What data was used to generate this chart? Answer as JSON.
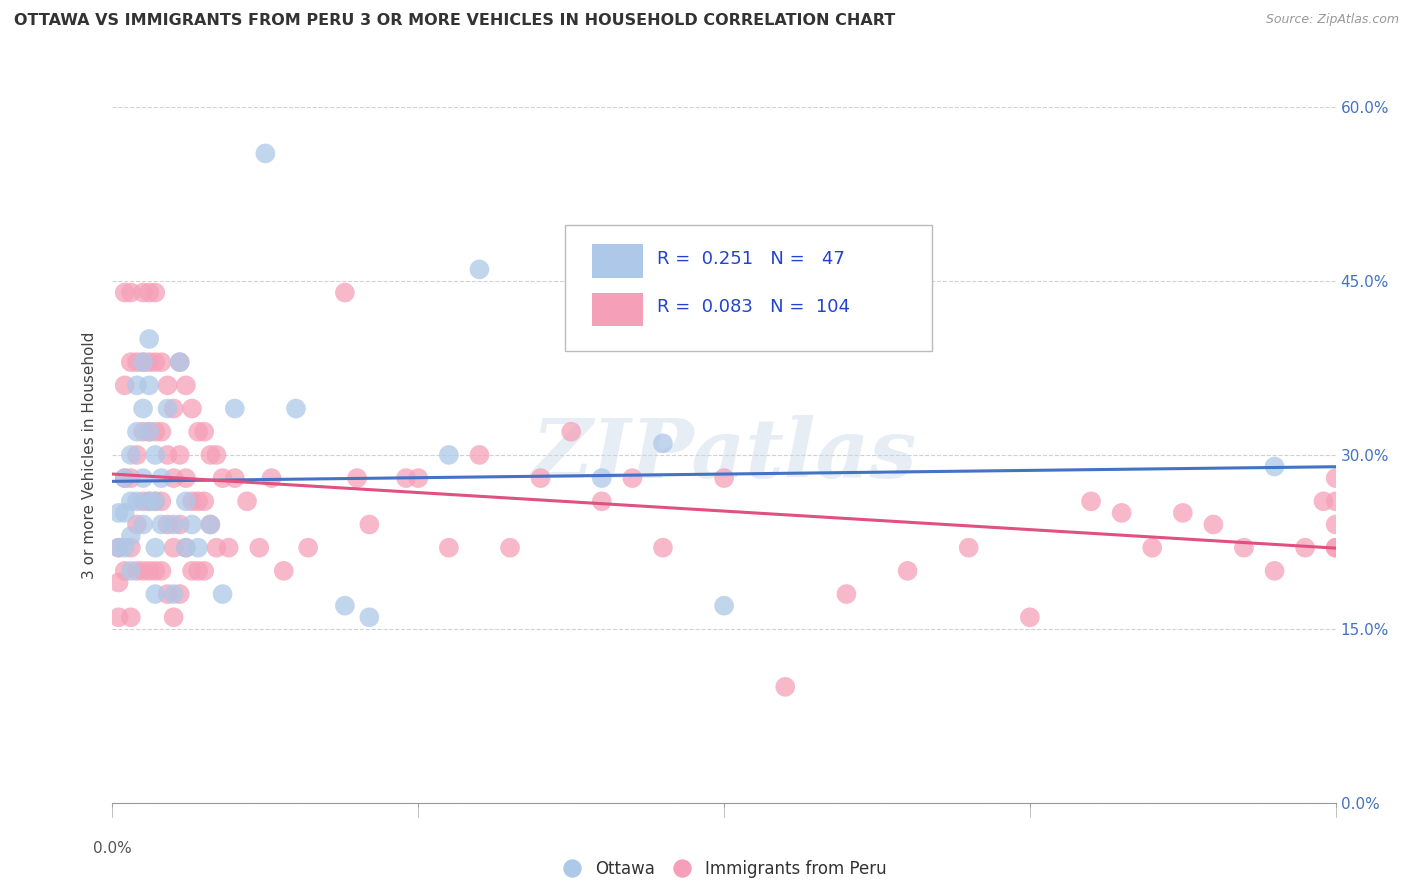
{
  "title": "OTTAWA VS IMMIGRANTS FROM PERU 3 OR MORE VEHICLES IN HOUSEHOLD CORRELATION CHART",
  "source": "Source: ZipAtlas.com",
  "ylabel": "3 or more Vehicles in Household",
  "xlim": [
    0.0,
    0.2
  ],
  "ylim": [
    0.0,
    0.6
  ],
  "ottawa_R": "0.251",
  "ottawa_N": "47",
  "peru_R": "0.083",
  "peru_N": "104",
  "ottawa_color": "#adc8e8",
  "peru_color": "#f5a0b8",
  "ottawa_line_color": "#4472c4",
  "peru_line_color": "#e05080",
  "background_color": "#ffffff",
  "grid_color": "#cccccc",
  "watermark": "ZIPatlas",
  "ottawa_x": [
    0.001,
    0.001,
    0.002,
    0.002,
    0.002,
    0.003,
    0.003,
    0.003,
    0.003,
    0.004,
    0.004,
    0.004,
    0.005,
    0.005,
    0.005,
    0.005,
    0.006,
    0.006,
    0.006,
    0.006,
    0.007,
    0.007,
    0.007,
    0.007,
    0.008,
    0.008,
    0.009,
    0.01,
    0.01,
    0.011,
    0.012,
    0.012,
    0.013,
    0.014,
    0.016,
    0.018,
    0.02,
    0.025,
    0.03,
    0.038,
    0.042,
    0.055,
    0.06,
    0.08,
    0.09,
    0.1,
    0.19
  ],
  "ottawa_y": [
    0.25,
    0.22,
    0.28,
    0.25,
    0.22,
    0.3,
    0.26,
    0.23,
    0.2,
    0.36,
    0.32,
    0.26,
    0.38,
    0.34,
    0.28,
    0.24,
    0.4,
    0.36,
    0.32,
    0.26,
    0.3,
    0.26,
    0.22,
    0.18,
    0.28,
    0.24,
    0.34,
    0.24,
    0.18,
    0.38,
    0.26,
    0.22,
    0.24,
    0.22,
    0.24,
    0.18,
    0.34,
    0.56,
    0.34,
    0.17,
    0.16,
    0.3,
    0.46,
    0.28,
    0.31,
    0.17,
    0.29
  ],
  "peru_x": [
    0.001,
    0.001,
    0.001,
    0.002,
    0.002,
    0.002,
    0.002,
    0.003,
    0.003,
    0.003,
    0.003,
    0.003,
    0.004,
    0.004,
    0.004,
    0.004,
    0.005,
    0.005,
    0.005,
    0.005,
    0.005,
    0.006,
    0.006,
    0.006,
    0.006,
    0.006,
    0.007,
    0.007,
    0.007,
    0.007,
    0.007,
    0.008,
    0.008,
    0.008,
    0.008,
    0.009,
    0.009,
    0.009,
    0.009,
    0.01,
    0.01,
    0.01,
    0.01,
    0.011,
    0.011,
    0.011,
    0.011,
    0.012,
    0.012,
    0.012,
    0.013,
    0.013,
    0.013,
    0.014,
    0.014,
    0.014,
    0.015,
    0.015,
    0.015,
    0.016,
    0.016,
    0.017,
    0.017,
    0.018,
    0.019,
    0.02,
    0.022,
    0.024,
    0.026,
    0.028,
    0.032,
    0.038,
    0.04,
    0.042,
    0.048,
    0.05,
    0.055,
    0.06,
    0.065,
    0.07,
    0.075,
    0.08,
    0.085,
    0.09,
    0.1,
    0.11,
    0.12,
    0.13,
    0.14,
    0.15,
    0.16,
    0.165,
    0.17,
    0.175,
    0.18,
    0.185,
    0.19,
    0.195,
    0.198,
    0.2,
    0.2,
    0.2,
    0.2,
    0.2
  ],
  "peru_y": [
    0.22,
    0.19,
    0.16,
    0.44,
    0.36,
    0.28,
    0.2,
    0.44,
    0.38,
    0.28,
    0.22,
    0.16,
    0.38,
    0.3,
    0.24,
    0.2,
    0.44,
    0.38,
    0.32,
    0.26,
    0.2,
    0.44,
    0.38,
    0.32,
    0.26,
    0.2,
    0.44,
    0.38,
    0.32,
    0.26,
    0.2,
    0.38,
    0.32,
    0.26,
    0.2,
    0.36,
    0.3,
    0.24,
    0.18,
    0.34,
    0.28,
    0.22,
    0.16,
    0.38,
    0.3,
    0.24,
    0.18,
    0.36,
    0.28,
    0.22,
    0.34,
    0.26,
    0.2,
    0.32,
    0.26,
    0.2,
    0.32,
    0.26,
    0.2,
    0.3,
    0.24,
    0.3,
    0.22,
    0.28,
    0.22,
    0.28,
    0.26,
    0.22,
    0.28,
    0.2,
    0.22,
    0.44,
    0.28,
    0.24,
    0.28,
    0.28,
    0.22,
    0.3,
    0.22,
    0.28,
    0.32,
    0.26,
    0.28,
    0.22,
    0.28,
    0.1,
    0.18,
    0.2,
    0.22,
    0.16,
    0.26,
    0.25,
    0.22,
    0.25,
    0.24,
    0.22,
    0.2,
    0.22,
    0.26,
    0.28,
    0.24,
    0.22,
    0.26,
    0.22
  ]
}
